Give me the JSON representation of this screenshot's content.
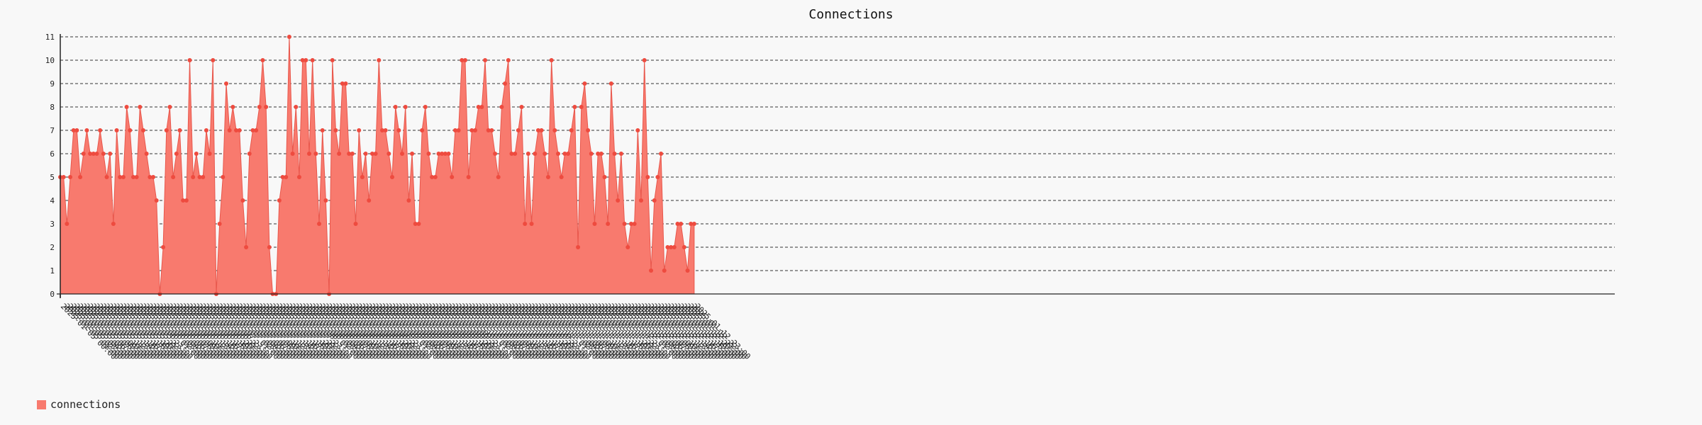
{
  "chart_data": {
    "type": "area",
    "title": "Connections",
    "xlabel": "",
    "ylabel": "",
    "ylim": [
      0,
      11
    ],
    "y_ticks": [
      0,
      1,
      2,
      3,
      4,
      5,
      6,
      7,
      8,
      9,
      10,
      11
    ],
    "grid": "horizontal dashed",
    "legend_position": "bottom-left",
    "x_start": "2025-01-05 00:00",
    "x_end": "2025-01-12 23:00",
    "x_step": "1 hour",
    "x_labels": [
      "2025-01-05 00:00",
      "2025-01-06",
      "2025-01-07",
      "2025-01-08",
      "2025-01-09",
      "2025-01-10",
      "2025-01-11",
      "2025-01-12"
    ],
    "series": [
      {
        "name": "connections",
        "color": "#f87a6e",
        "values": [
          5,
          5,
          3,
          5,
          7,
          7,
          5,
          6,
          7,
          6,
          6,
          6,
          7,
          6,
          5,
          6,
          3,
          7,
          5,
          5,
          8,
          7,
          5,
          5,
          8,
          7,
          6,
          5,
          5,
          4,
          0,
          2,
          7,
          8,
          5,
          6,
          7,
          4,
          4,
          10,
          5,
          6,
          5,
          5,
          7,
          6,
          10,
          0,
          3,
          5,
          9,
          7,
          8,
          7,
          7,
          4,
          2,
          6,
          7,
          7,
          8,
          10,
          8,
          2,
          0,
          0,
          4,
          5,
          5,
          11,
          6,
          8,
          5,
          10,
          10,
          6,
          10,
          6,
          3,
          7,
          4,
          0,
          10,
          7,
          6,
          9,
          9,
          6,
          6,
          3,
          7,
          5,
          6,
          4,
          6,
          6,
          10,
          7,
          7,
          6,
          5,
          8,
          7,
          6,
          8,
          4,
          6,
          3,
          3,
          7,
          8,
          6,
          5,
          5,
          6,
          6,
          6,
          6,
          5,
          7,
          7,
          10,
          10,
          5,
          7,
          7,
          8,
          8,
          10,
          7,
          7,
          6,
          5,
          8,
          9,
          10,
          6,
          6,
          7,
          8,
          3,
          6,
          3,
          6,
          7,
          7,
          6,
          5,
          10,
          7,
          6,
          5,
          6,
          6,
          7,
          8,
          2,
          8,
          9,
          7,
          6,
          3,
          6,
          6,
          5,
          3,
          9,
          6,
          4,
          6,
          3,
          2,
          3,
          3,
          7,
          4,
          10,
          5,
          1,
          4,
          5,
          6,
          1,
          2,
          2,
          2,
          3,
          3,
          2,
          1,
          3,
          3
        ]
      }
    ]
  }
}
